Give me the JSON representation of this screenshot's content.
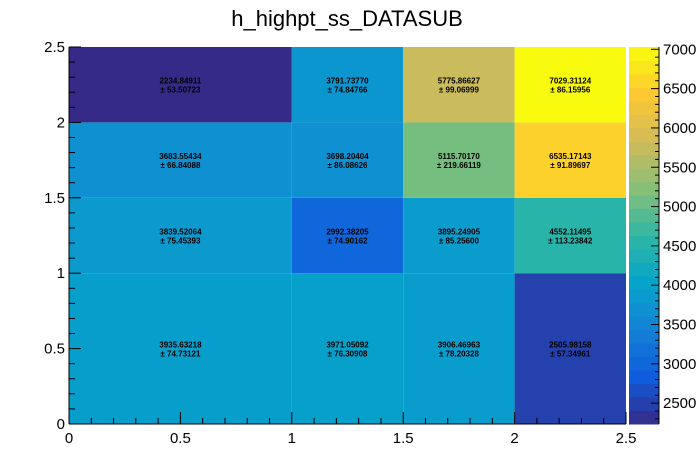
{
  "chart_data": {
    "type": "heatmap",
    "title": "h_highpt_ss_DATASUB",
    "xlabel": "",
    "ylabel": "",
    "x_edges": [
      0,
      1,
      1.5,
      2,
      2.5
    ],
    "y_edges": [
      0,
      1,
      1.5,
      2,
      2.5
    ],
    "xlim": [
      0,
      2.5
    ],
    "ylim": [
      0,
      2.5
    ],
    "x_tick_labels": [
      "0",
      "0.5",
      "1",
      "1.5",
      "2",
      "2.5"
    ],
    "y_tick_labels": [
      "0",
      "0.5",
      "1",
      "1.5",
      "2",
      "2.5"
    ],
    "x_tick_values": [
      0,
      0.5,
      1,
      1.5,
      2,
      2.5
    ],
    "y_tick_values": [
      0,
      0.5,
      1,
      1.5,
      2,
      2.5
    ],
    "cells": [
      {
        "x": [
          0,
          1
        ],
        "y": [
          0,
          1
        ],
        "value": "3935.63218",
        "error": "± 74.73121"
      },
      {
        "x": [
          1,
          1.5
        ],
        "y": [
          0,
          1
        ],
        "value": "3971.05092",
        "error": "± 76.30908"
      },
      {
        "x": [
          1.5,
          2
        ],
        "y": [
          0,
          1
        ],
        "value": "3906.46963",
        "error": "± 78.20328"
      },
      {
        "x": [
          2,
          2.5
        ],
        "y": [
          0,
          1
        ],
        "value": "2505.98158",
        "error": "± 57.34961"
      },
      {
        "x": [
          0,
          1
        ],
        "y": [
          1,
          1.5
        ],
        "value": "3839.52064",
        "error": "± 75.45393"
      },
      {
        "x": [
          1,
          1.5
        ],
        "y": [
          1,
          1.5
        ],
        "value": "2992.38205",
        "error": "± 74.90162"
      },
      {
        "x": [
          1.5,
          2
        ],
        "y": [
          1,
          1.5
        ],
        "value": "3895.24905",
        "error": "± 85.25600"
      },
      {
        "x": [
          2,
          2.5
        ],
        "y": [
          1,
          1.5
        ],
        "value": "4552.11495",
        "error": "± 113.23842"
      },
      {
        "x": [
          0,
          1
        ],
        "y": [
          1.5,
          2
        ],
        "value": "3683.55434",
        "error": "± 66.84088"
      },
      {
        "x": [
          1,
          1.5
        ],
        "y": [
          1.5,
          2
        ],
        "value": "3698.20404",
        "error": "± 86.08626"
      },
      {
        "x": [
          1.5,
          2
        ],
        "y": [
          1.5,
          2
        ],
        "value": "5115.70170",
        "error": "± 219.66119"
      },
      {
        "x": [
          2,
          2.5
        ],
        "y": [
          1.5,
          2
        ],
        "value": "6535.17143",
        "error": "± 91.89697"
      },
      {
        "x": [
          0,
          1
        ],
        "y": [
          2,
          2.5
        ],
        "value": "2234.84911",
        "error": "± 53.50723"
      },
      {
        "x": [
          1,
          1.5
        ],
        "y": [
          2,
          2.5
        ],
        "value": "3791.73770",
        "error": "± 74.84766"
      },
      {
        "x": [
          1.5,
          2
        ],
        "y": [
          2,
          2.5
        ],
        "value": "5775.86627",
        "error": "± 99.06999"
      },
      {
        "x": [
          2,
          2.5
        ],
        "y": [
          2,
          2.5
        ],
        "value": "7029.31124",
        "error": "± 86.15956"
      }
    ],
    "color_scale": {
      "min": 2234.84911,
      "max": 7029.31124,
      "tick_labels": [
        "2500",
        "3000",
        "3500",
        "4000",
        "4500",
        "5000",
        "5500",
        "6000",
        "6500",
        "7000"
      ],
      "tick_values": [
        2500,
        3000,
        3500,
        4000,
        4500,
        5000,
        5500,
        6000,
        6500,
        7000
      ],
      "palette": [
        "#352a87",
        "#0f5cdd",
        "#1481d6",
        "#06a4ca",
        "#2eb7a4",
        "#87bf77",
        "#d1bb59",
        "#fec832",
        "#f9fb0e"
      ]
    },
    "grid": false
  }
}
